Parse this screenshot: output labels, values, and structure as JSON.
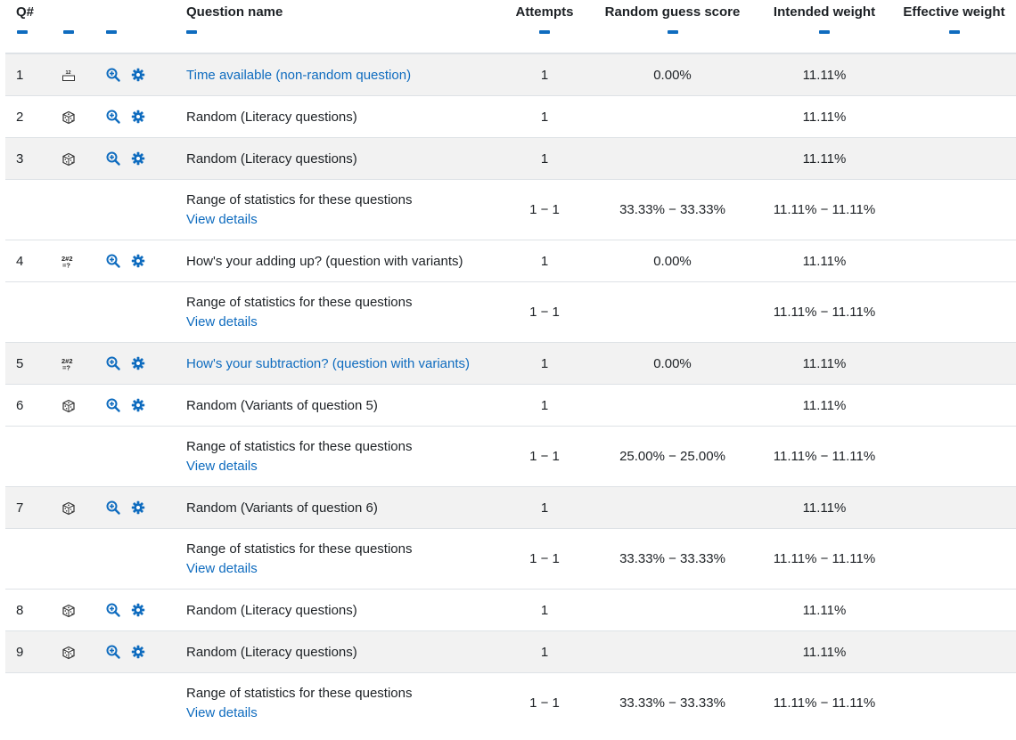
{
  "headers": {
    "qnum": "Q#",
    "name": "Question name",
    "attempts": "Attempts",
    "random_guess": "Random guess score",
    "intended": "Intended weight",
    "effective": "Effective weight"
  },
  "colors": {
    "link": "#0f6cbf",
    "shaded_row": "#f2f2f2",
    "border": "#dee2e6"
  },
  "rows": [
    {
      "kind": "question",
      "qnum": "1",
      "type_icon": "essay-numeric-icon",
      "name": "Time available (non-random question)",
      "link": true,
      "attempts": "1",
      "random_guess": "0.00%",
      "intended": "11.11%",
      "effective": ""
    },
    {
      "kind": "question",
      "qnum": "2",
      "type_icon": "random-dice-icon",
      "name": "Random (Literacy questions)",
      "link": false,
      "attempts": "1",
      "random_guess": "",
      "intended": "11.11%",
      "effective": ""
    },
    {
      "kind": "question",
      "qnum": "3",
      "type_icon": "random-dice-icon",
      "name": "Random (Literacy questions)",
      "link": false,
      "attempts": "1",
      "random_guess": "",
      "intended": "11.11%",
      "effective": ""
    },
    {
      "kind": "range",
      "label": "Range of statistics for these questions",
      "details": "View details",
      "attempts": "1 − 1",
      "random_guess": "33.33% − 33.33%",
      "intended": "11.11% − 11.11%",
      "effective": ""
    },
    {
      "kind": "question",
      "qnum": "4",
      "type_icon": "calculated-icon",
      "name": "How's your adding up? (question with variants)",
      "link": false,
      "attempts": "1",
      "random_guess": "0.00%",
      "intended": "11.11%",
      "effective": ""
    },
    {
      "kind": "range",
      "label": "Range of statistics for these questions",
      "details": "View details",
      "attempts": "1 − 1",
      "random_guess": "",
      "intended": "11.11% − 11.11%",
      "effective": ""
    },
    {
      "kind": "question",
      "qnum": "5",
      "type_icon": "calculated-icon",
      "name": "How's your subtraction? (question with variants)",
      "link": true,
      "attempts": "1",
      "random_guess": "0.00%",
      "intended": "11.11%",
      "effective": ""
    },
    {
      "kind": "question",
      "qnum": "6",
      "type_icon": "random-dice-icon",
      "name": "Random (Variants of question 5)",
      "link": false,
      "attempts": "1",
      "random_guess": "",
      "intended": "11.11%",
      "effective": ""
    },
    {
      "kind": "range",
      "label": "Range of statistics for these questions",
      "details": "View details",
      "attempts": "1 − 1",
      "random_guess": "25.00% − 25.00%",
      "intended": "11.11% − 11.11%",
      "effective": ""
    },
    {
      "kind": "question",
      "qnum": "7",
      "type_icon": "random-dice-icon",
      "name": "Random (Variants of question 6)",
      "link": false,
      "attempts": "1",
      "random_guess": "",
      "intended": "11.11%",
      "effective": ""
    },
    {
      "kind": "range",
      "label": "Range of statistics for these questions",
      "details": "View details",
      "attempts": "1 − 1",
      "random_guess": "33.33% − 33.33%",
      "intended": "11.11% − 11.11%",
      "effective": ""
    },
    {
      "kind": "question",
      "qnum": "8",
      "type_icon": "random-dice-icon",
      "name": "Random (Literacy questions)",
      "link": false,
      "attempts": "1",
      "random_guess": "",
      "intended": "11.11%",
      "effective": ""
    },
    {
      "kind": "question",
      "qnum": "9",
      "type_icon": "random-dice-icon",
      "name": "Random (Literacy questions)",
      "link": false,
      "attempts": "1",
      "random_guess": "",
      "intended": "11.11%",
      "effective": ""
    },
    {
      "kind": "range",
      "label": "Range of statistics for these questions",
      "details": "View details",
      "attempts": "1 − 1",
      "random_guess": "33.33% − 33.33%",
      "intended": "11.11% − 11.11%",
      "effective": ""
    }
  ]
}
